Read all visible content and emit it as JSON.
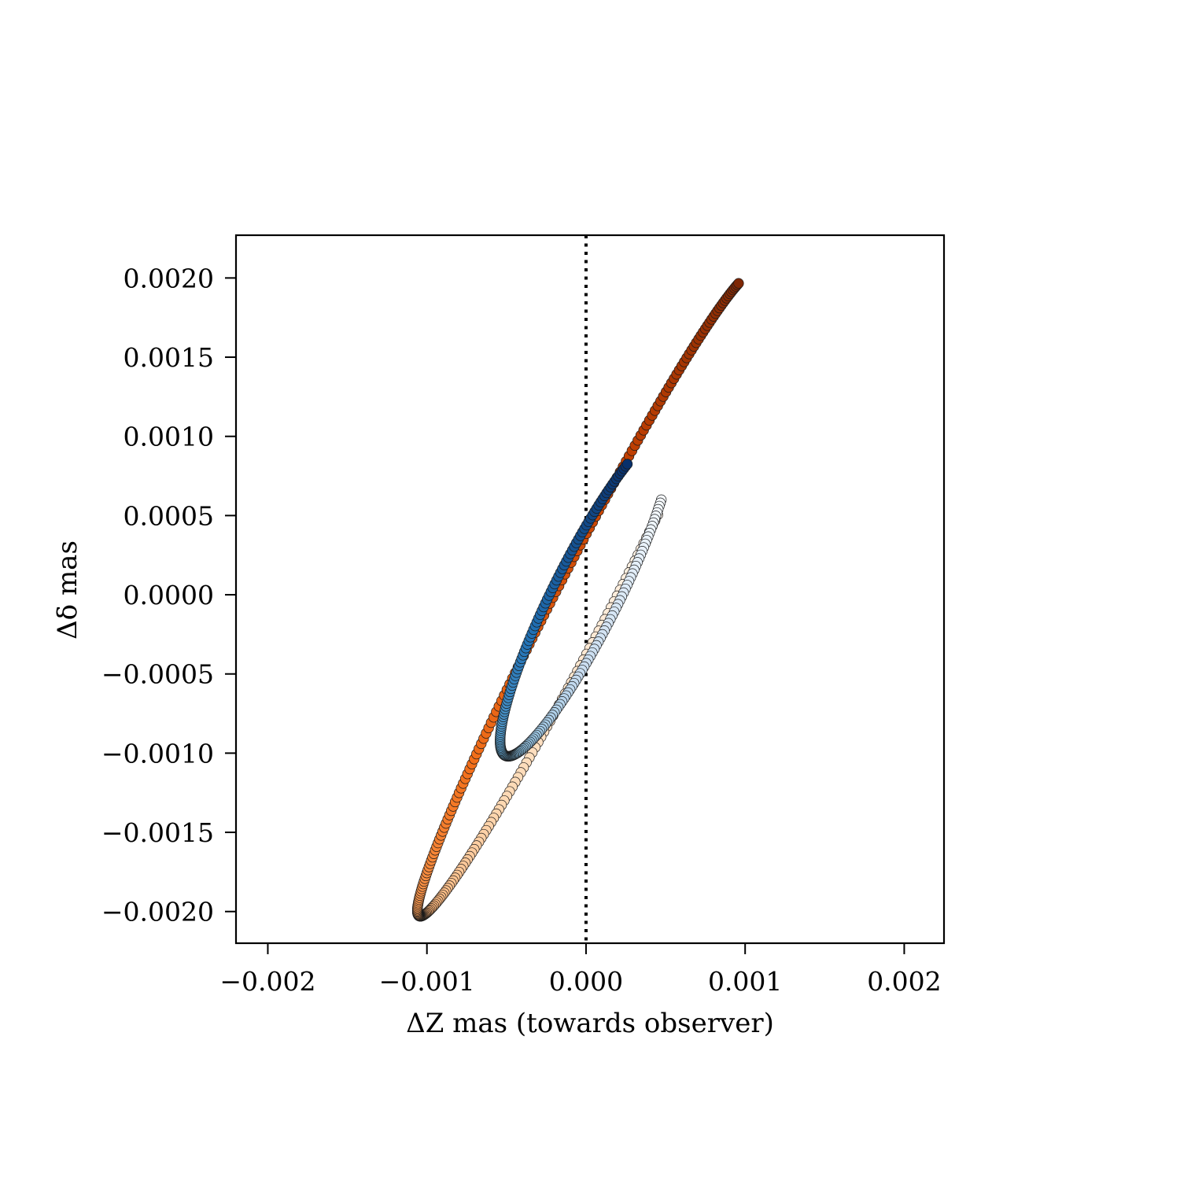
{
  "chart_data": {
    "type": "scatter",
    "title": "",
    "xlabel": "ΔZ mas (towards observer)",
    "ylabel": "Δδ mas",
    "xlim": [
      -0.0022,
      0.00225
    ],
    "ylim": [
      -0.0022,
      0.00227
    ],
    "x_ticks": [
      -0.002,
      -0.001,
      0.0,
      0.001,
      0.002
    ],
    "x_tick_labels": [
      "−0.002",
      "−0.001",
      "0.000",
      "0.001",
      "0.002"
    ],
    "y_ticks": [
      -0.002,
      -0.0015,
      -0.001,
      -0.0005,
      0.0,
      0.0005,
      0.001,
      0.0015,
      0.002
    ],
    "y_tick_labels": [
      "−0.0020",
      "−0.0015",
      "−0.0010",
      "−0.0005",
      "0.0000",
      "0.0005",
      "0.0010",
      "0.0015",
      "0.0020"
    ],
    "grid": false,
    "reference_line": {
      "orientation": "vertical",
      "x": 0.0,
      "style": "dotted",
      "color": "#000000"
    },
    "series": [
      {
        "colormap": "Oranges",
        "colors": [
          "#fff5eb",
          "#fdd9b4",
          "#fda762",
          "#f3701b",
          "#c54102",
          "#7f2704"
        ],
        "orbit": {
          "center_x": 0.0,
          "center_y": 0.0,
          "semi_x": 0.00106,
          "semi_y": 0.00203,
          "phase_offset": 0.03,
          "t_start": 0.18,
          "t_end": 0.93,
          "points": 260
        }
      },
      {
        "colormap": "Blues",
        "colors": [
          "#f7fbff",
          "#c6dbef",
          "#6baed6",
          "#2171b5",
          "#08306b"
        ],
        "orbit": {
          "center_x": 0.0,
          "center_y": 0.0,
          "semi_x": 0.00054,
          "semi_y": 0.00102,
          "phase_offset": 0.07,
          "t_start": 0.08,
          "t_end": 0.83,
          "points": 200
        }
      }
    ]
  }
}
